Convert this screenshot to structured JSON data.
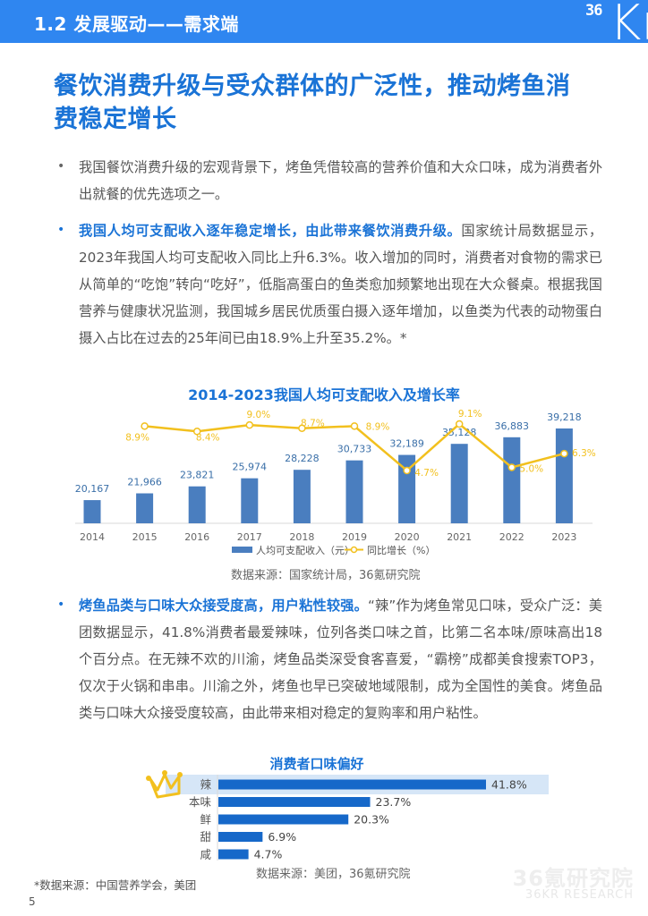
{
  "header": {
    "section_title": "1.2 发展驱动——需求端",
    "logo_small": "36",
    "logo_large": "Kr"
  },
  "page_title": "餐饮消费升级与受众群体的广泛性，推动烤鱼消费稳定增长",
  "page_title_lines": [
    "餐饮消费升级与受众群体的广泛性，推动烤鱼消",
    "费稳定增长"
  ],
  "bullets": [
    {
      "marker": "•",
      "highlight": "",
      "text": "我国餐饮消费升级的宏观背景下，烤鱼凭借较高的营养价值和大众口味，成为消费者外出就餐的优先选项之一。"
    },
    {
      "marker": "•",
      "highlight": "我国人均可支配收入逐年稳定增长，由此带来餐饮消费升级。",
      "text": "国家统计局数据显示，2023年我国人均可支配收入同比上升6.3%。收入增加的同时，消费者对食物的需求已从简单的“吃饱”转向“吃好”，低脂高蛋白的鱼类愈加频繁地出现在大众餐桌。根据我国营养与健康状况监测，我国城乡居民优质蛋白摄入逐年增加，以鱼类为代表的动物蛋白摄入占比在过去的25年间已由18.9%上升至35.2%。*"
    },
    {
      "marker": "•",
      "highlight": "烤鱼品类与口味大众接受度高，用户粘性较强。",
      "text": "“辣”作为烤鱼常见口味，受众广泛：美团数据显示，41.8%消费者最爱辣味，位列各类口味之首，比第二名本味/原味高出18个百分点。在无辣不欢的川渝，烤鱼品类深受食客喜爱，“霸榜”成都美食搜索TOP3，仅次于火锅和串串。川渝之外，烤鱼也早已突破地域限制，成为全国性的美食。烤鱼品类与口味大众接受度较高，由此带来相对稳定的复购率和用户粘性。"
    }
  ],
  "chart1_source": "数据来源：国家统计局，36氪研究院",
  "chart2_source": "数据来源：美团，36氪研究院",
  "footer": {
    "note": "*数据来源：中国营养学会，美团",
    "page_number": "5",
    "watermark_cn": "36氪研究院",
    "watermark_en": "36KR RESEARCH"
  },
  "colors": {
    "brand_blue": "#2f86f0",
    "title_blue": "#1a73d6",
    "bar_blue": "#4a7ebf",
    "line_yellow": "#f2c01e",
    "label_blue": "#3a6fa8",
    "label_yellow": "#f2c01e",
    "flavor_bar": "#1668c9",
    "highlight_row": "#d6e6f7"
  },
  "chart_data": [
    {
      "type": "bar+line",
      "title": "2014-2023我国人均可支配收入及增长率",
      "categories": [
        "2014",
        "2015",
        "2016",
        "2017",
        "2018",
        "2019",
        "2020",
        "2021",
        "2022",
        "2023"
      ],
      "series": [
        {
          "name": "人均可支配收入（元）",
          "type": "bar",
          "values": [
            20167,
            21966,
            23821,
            25974,
            28228,
            30733,
            32189,
            35128,
            36883,
            39218
          ],
          "labels": [
            "20,167",
            "21,966",
            "23,821",
            "25,974",
            "28,228",
            "30,733",
            "32,189",
            "35,128",
            "36,883",
            "39,218"
          ]
        },
        {
          "name": "同比增长（%）",
          "type": "line",
          "values": [
            null,
            8.9,
            8.4,
            9.0,
            8.7,
            8.9,
            4.7,
            9.1,
            5.0,
            6.3
          ],
          "labels": [
            "",
            "8.9%",
            "8.4%",
            "9.0%",
            "8.7%",
            "8.9%",
            "4.7%",
            "9.1%",
            "5.0%",
            "6.3%"
          ]
        }
      ],
      "legend": [
        "人均可支配收入（元）",
        "同比增长（%）"
      ],
      "legend_position": "bottom",
      "grid": false,
      "xlabel": "",
      "ylabel": ""
    },
    {
      "type": "bar",
      "orientation": "horizontal",
      "title": "消费者口味偏好",
      "categories": [
        "辣",
        "本味",
        "鲜",
        "甜",
        "咸"
      ],
      "values": [
        41.8,
        23.7,
        20.3,
        6.9,
        4.7
      ],
      "labels": [
        "41.8%",
        "23.7%",
        "20.3%",
        "6.9%",
        "4.7%"
      ],
      "highlighted": "辣",
      "icon": "crown-icon",
      "grid": false
    }
  ]
}
